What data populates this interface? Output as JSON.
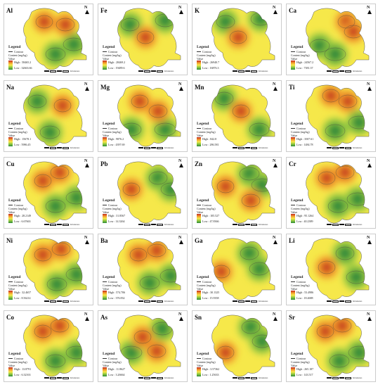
{
  "north_label": "N",
  "legend": {
    "title": "Legend",
    "contour_label": "Contour",
    "content_label": "Content (mg/kg)",
    "value_label": "Value"
  },
  "scale_units": "Kilometers",
  "ramp_colors": [
    "#c2261f",
    "#f29a2b",
    "#f6e84a",
    "#8dc63f",
    "#2d8a3a"
  ],
  "panels": [
    {
      "element": "Al",
      "high": "High : 58465.2",
      "low": "Low : 32663.66"
    },
    {
      "element": "Fe",
      "high": "High : 28469.2",
      "low": "Low : 19489.6"
    },
    {
      "element": "K",
      "high": "High : 26940.7",
      "low": "Low : 16876.3"
    },
    {
      "element": "Ca",
      "high": "High : 24567.2",
      "low": "Low : 7381.37"
    },
    {
      "element": "Na",
      "high": "High : 15678.1",
      "low": "Low : 5986.45"
    },
    {
      "element": "Mg",
      "high": "High : 9876.2",
      "low": "Low : 4397.69"
    },
    {
      "element": "Mn",
      "high": "High : 842.8",
      "low": "Low : 286.581"
    },
    {
      "element": "Ti",
      "high": "High : 3507.61",
      "low": "Low : 1484.78"
    },
    {
      "element": "Cu",
      "high": "High : 28.2149",
      "low": "Low : 6.67663"
    },
    {
      "element": "Pb",
      "high": "High : 31.8567",
      "low": "Low : 14.3264"
    },
    {
      "element": "Zn",
      "high": "High : 105.527",
      "low": "Low : 47.8366"
    },
    {
      "element": "Cr",
      "high": "High : 95.1264",
      "low": "Low : 40.2389"
    },
    {
      "element": "Ni",
      "high": "High : 32.4657",
      "low": "Low : 8.56214"
    },
    {
      "element": "Ba",
      "high": "High : 574.706",
      "low": "Low : 376.832"
    },
    {
      "element": "Ga",
      "high": "High : 30.1325",
      "low": "Low : 15.9358"
    },
    {
      "element": "Li",
      "high": "High : 53.4986",
      "low": "Low : 18.4688"
    },
    {
      "element": "Co",
      "high": "High : 13.8791",
      "low": "Low : 6.32163"
    },
    {
      "element": "As",
      "high": "High : 11.8627",
      "low": "Low : 3.26664"
    },
    {
      "element": "Sn",
      "high": "High : 3.57362",
      "low": "Low : 1.25633"
    },
    {
      "element": "Sr",
      "high": "High : 265.187",
      "low": "Low : 143.517"
    }
  ]
}
